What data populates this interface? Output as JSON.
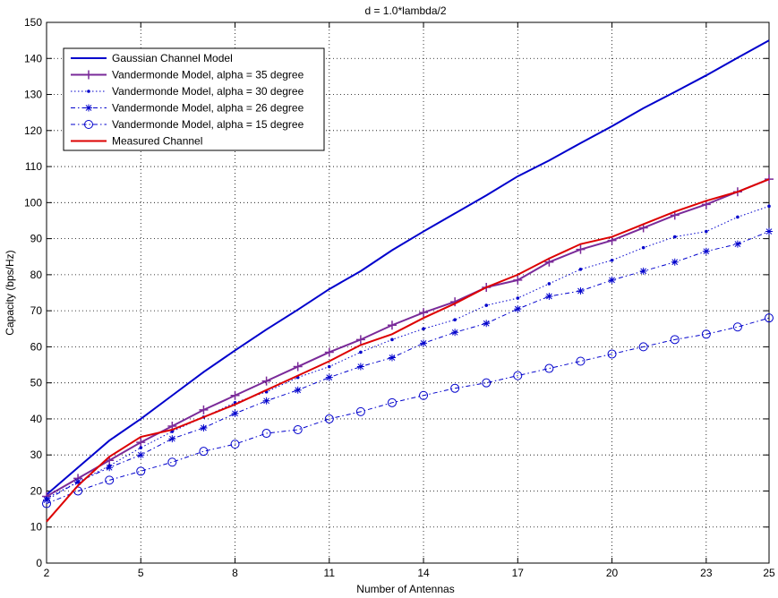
{
  "chart_data": {
    "type": "line",
    "title": "d = 1.0*lambda/2",
    "xlabel": "Number of Antennas",
    "ylabel": "Capacity (bps/Hz)",
    "xlim": [
      2,
      25
    ],
    "ylim": [
      0,
      150
    ],
    "xticks": [
      2,
      5,
      8,
      11,
      14,
      17,
      20,
      23,
      25
    ],
    "yticks": [
      0,
      10,
      20,
      30,
      40,
      50,
      60,
      70,
      80,
      90,
      100,
      110,
      120,
      130,
      140,
      150
    ],
    "grid": true,
    "legend_position": "top-left",
    "x": [
      2,
      3,
      4,
      5,
      6,
      7,
      8,
      9,
      10,
      11,
      12,
      13,
      14,
      15,
      16,
      17,
      18,
      19,
      20,
      21,
      22,
      23,
      24,
      25
    ],
    "series": [
      {
        "name": "Gaussian Channel Model",
        "color": "#0000cc",
        "line": "solid",
        "marker": "none",
        "values": [
          19,
          26.5,
          34,
          40,
          46.5,
          53,
          59,
          64.8,
          70.3,
          76,
          81,
          86.8,
          92,
          97,
          102,
          107.3,
          111.7,
          116.5,
          121.2,
          126.2,
          130.7,
          135.3,
          140.2,
          145
        ]
      },
      {
        "name": "Vandermonde Model, alpha = 35 degree",
        "color": "#7a2a99",
        "line": "solid",
        "marker": "plus",
        "values": [
          18.5,
          23.5,
          28.5,
          33.5,
          38,
          42.5,
          46.5,
          50.5,
          54.5,
          58.5,
          62,
          66,
          69.5,
          72.5,
          76.5,
          78.5,
          83.5,
          87,
          89.5,
          93,
          96.5,
          99.5,
          103,
          106.5
        ]
      },
      {
        "name": "Vandermonde Model, alpha = 30 degree",
        "color": "#0000cc",
        "line": "dotted",
        "marker": "dot",
        "values": [
          18,
          22.5,
          27,
          32,
          36.5,
          40.5,
          44.5,
          47.5,
          51.5,
          54.5,
          58.5,
          62,
          65,
          67.5,
          71.5,
          73.5,
          77.5,
          81.5,
          84,
          87.5,
          90.5,
          92,
          96,
          99
        ]
      },
      {
        "name": "Vandermonde Model, alpha = 26 degree",
        "color": "#0000cc",
        "line": "dashdot",
        "marker": "star",
        "values": [
          17.5,
          22.5,
          26.5,
          30,
          34.5,
          37.5,
          41.5,
          45,
          48,
          51.5,
          54.5,
          57,
          61,
          64,
          66.5,
          70.5,
          74,
          75.5,
          78.5,
          81,
          83.5,
          86.5,
          88.5,
          92
        ]
      },
      {
        "name": "Vandermonde Model, alpha = 15 degree",
        "color": "#0000cc",
        "line": "dashdot",
        "marker": "circle",
        "values": [
          16.5,
          20,
          23,
          25.5,
          28,
          31,
          33,
          36,
          37,
          40,
          42,
          44.5,
          46.5,
          48.5,
          50,
          52,
          54,
          56,
          58,
          60,
          62,
          63.5,
          65.5,
          68
        ]
      },
      {
        "name": "Measured Channel",
        "color": "#dd0000",
        "line": "solid",
        "marker": "none",
        "values": [
          11.5,
          21.5,
          29.5,
          35,
          37,
          40.5,
          44,
          48,
          52,
          56,
          60.5,
          63.5,
          68,
          72,
          76.5,
          80,
          84.5,
          88.5,
          90.5,
          94,
          97.5,
          100.5,
          103,
          106.5
        ]
      }
    ]
  }
}
